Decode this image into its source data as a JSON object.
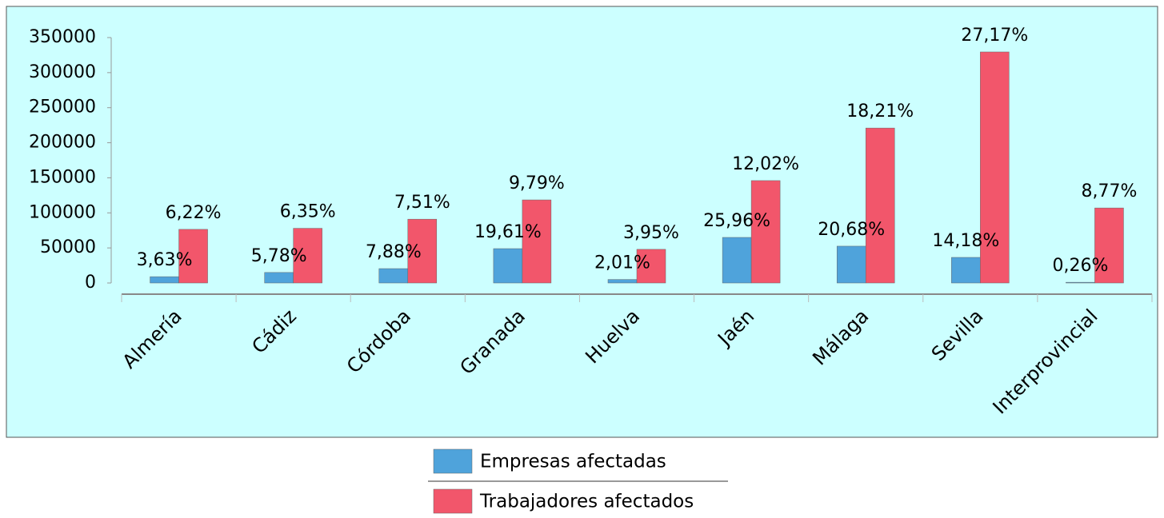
{
  "chart_data": {
    "type": "bar",
    "categories": [
      "Almería",
      "Cádiz",
      "Córdoba",
      "Granada",
      "Huelva",
      "Jaén",
      "Málaga",
      "Sevilla",
      "Interprovincial"
    ],
    "series": [
      {
        "name": "Empresas afectadas",
        "color": "#4fa3db",
        "values": [
          9000,
          15000,
          20500,
          49000,
          5000,
          65000,
          52500,
          36500,
          1000
        ],
        "data_labels": [
          "3,63%",
          "5,78%",
          "7,88%",
          "19,61%",
          "2,01%",
          "25,96%",
          "20,68%",
          "14,18%",
          "0,26%"
        ]
      },
      {
        "name": "Trabajadores afectados",
        "color": "#f2566b",
        "values": [
          76500,
          78000,
          91000,
          118500,
          48000,
          146000,
          221000,
          329500,
          107000
        ],
        "data_labels": [
          "6,22%",
          "6,35%",
          "7,51%",
          "9,79%",
          "3,95%",
          "12,02%",
          "18,21%",
          "27,17%",
          "8,77%"
        ]
      }
    ],
    "ylim": [
      0,
      350000
    ],
    "yticks": [
      0,
      50000,
      100000,
      150000,
      200000,
      250000,
      300000,
      350000
    ],
    "grid": false,
    "legend": "bottom"
  }
}
